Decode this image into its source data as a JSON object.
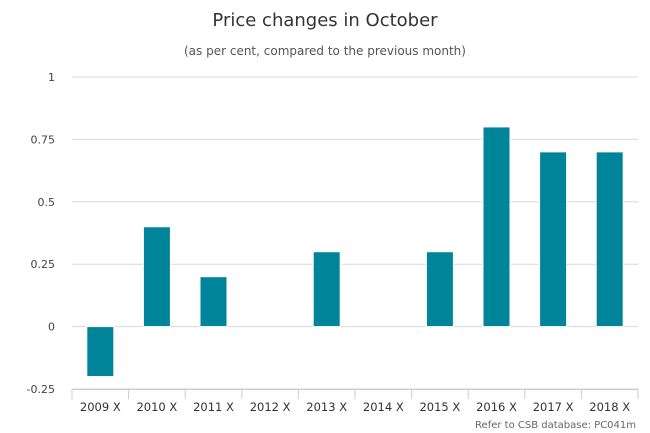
{
  "chart_data": {
    "type": "bar",
    "title": "Price changes in October",
    "subtitle": "(as per cent, compared to the previous month)",
    "categories": [
      "2009 X",
      "2010 X",
      "2011 X",
      "2012 X",
      "2013 X",
      "2014 X",
      "2015 X",
      "2016 X",
      "2017 X",
      "2018 X"
    ],
    "values": [
      -0.2,
      0.4,
      0.2,
      0,
      0.3,
      0,
      0.3,
      0.8,
      0.7,
      0.7
    ],
    "yticks": [
      "-0.25",
      "0",
      "0.25",
      "0.5",
      "0.75",
      "1"
    ],
    "ylim": [
      -0.25,
      1
    ],
    "grid": true,
    "legend": "none",
    "bar_color": "#00849a",
    "credit": "Refer to CSB database: PC041m"
  }
}
